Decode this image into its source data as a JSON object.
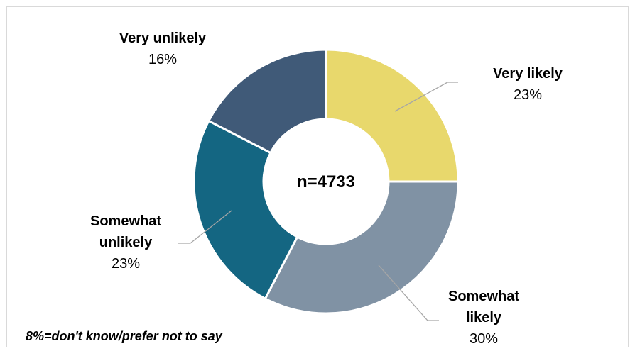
{
  "chart_data": {
    "type": "pie",
    "subtype": "donut",
    "center_label": "n=4733",
    "start_angle_deg": 0,
    "direction": "clockwise",
    "slices": [
      {
        "label_lines": [
          "Very likely"
        ],
        "pct_label": "23%",
        "value": 23,
        "color": "#e8d86c"
      },
      {
        "label_lines": [
          "Somewhat",
          "likely"
        ],
        "pct_label": "30%",
        "value": 30,
        "color": "#8092a4"
      },
      {
        "label_lines": [
          "Somewhat",
          "unlikely"
        ],
        "pct_label": "23%",
        "value": 23,
        "color": "#146682"
      },
      {
        "label_lines": [
          "Very unlikely"
        ],
        "pct_label": "16%",
        "value": 16,
        "color": "#405a78"
      }
    ],
    "footnote": "8%=don't know/prefer not to say"
  }
}
